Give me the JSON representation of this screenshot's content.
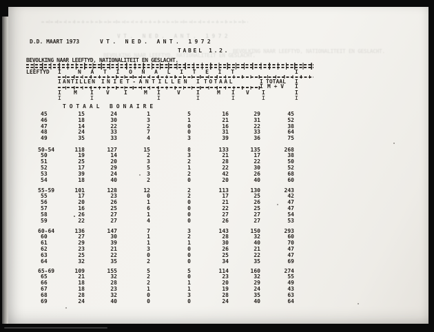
{
  "scan": {
    "stamp_left": "D.D. MAART 1973",
    "stamp_right": "VT. NED. ANT. 1972",
    "tabel": "TABEL 1.2.",
    "title": "BEVOLKING NAAR LEEFTYD, NATIONALITEIT EN GESLACHT.",
    "section_heading": "TOTAAL BONAIRE"
  },
  "table": {
    "leeftyd": "LEEFTYD",
    "nationaliteit": "NATIONALITEIT",
    "antillen": "ANTILLEN",
    "niet_antillen": "NIET-ANTILLEN",
    "totaal_group": "TOTAAL",
    "totaal_mv_line1": "TOTAAL",
    "totaal_mv_line2": "M + V",
    "m": "M",
    "v": "V",
    "bar": "I",
    "column_keys": [
      "Antillen M",
      "Antillen V",
      "Niet-Antillen M",
      "Niet-Antillen V",
      "Totaal M",
      "Totaal V",
      "Totaal M+V"
    ],
    "blocks": [
      {
        "label": null,
        "total": null,
        "rows": [
          {
            "label": "45",
            "values": [
              15,
              24,
              1,
              5,
              16,
              29,
              45
            ]
          },
          {
            "label": "46",
            "values": [
              18,
              30,
              3,
              1,
              21,
              31,
              52
            ]
          },
          {
            "label": "47",
            "values": [
              14,
              22,
              2,
              0,
              16,
              22,
              38
            ]
          },
          {
            "label": "48",
            "values": [
              24,
              33,
              7,
              0,
              31,
              33,
              64
            ]
          },
          {
            "label": "49",
            "values": [
              35,
              33,
              4,
              3,
              39,
              36,
              75
            ]
          }
        ]
      },
      {
        "label": "50-54",
        "total": [
          118,
          127,
          15,
          8,
          133,
          135,
          268
        ],
        "rows": [
          {
            "label": "50",
            "values": [
              19,
              14,
              2,
              3,
              21,
              17,
              38
            ]
          },
          {
            "label": "51",
            "values": [
              25,
              20,
              3,
              2,
              28,
              22,
              50
            ]
          },
          {
            "label": "52",
            "values": [
              17,
              29,
              5,
              1,
              22,
              30,
              52
            ]
          },
          {
            "label": "53",
            "values": [
              39,
              24,
              3,
              2,
              42,
              26,
              68
            ]
          },
          {
            "label": "54",
            "values": [
              18,
              40,
              2,
              0,
              20,
              40,
              60
            ]
          }
        ]
      },
      {
        "label": "55-59",
        "total": [
          101,
          128,
          12,
          2,
          113,
          130,
          243
        ],
        "rows": [
          {
            "label": "55",
            "values": [
              17,
              23,
              0,
              2,
              17,
              25,
              42
            ]
          },
          {
            "label": "56",
            "values": [
              20,
              26,
              1,
              0,
              21,
              26,
              47
            ]
          },
          {
            "label": "57",
            "values": [
              16,
              25,
              6,
              0,
              22,
              25,
              47
            ]
          },
          {
            "label": "58",
            "values": [
              26,
              27,
              1,
              0,
              27,
              27,
              54
            ]
          },
          {
            "label": "59",
            "values": [
              22,
              27,
              4,
              0,
              26,
              27,
              53
            ]
          }
        ]
      },
      {
        "label": "60-64",
        "total": [
          136,
          147,
          7,
          3,
          143,
          150,
          293
        ],
        "rows": [
          {
            "label": "60",
            "values": [
              27,
              30,
              1,
              2,
              28,
              32,
              60
            ]
          },
          {
            "label": "61",
            "values": [
              29,
              39,
              1,
              1,
              30,
              40,
              70
            ]
          },
          {
            "label": "62",
            "values": [
              23,
              21,
              3,
              0,
              26,
              21,
              47
            ]
          },
          {
            "label": "63",
            "values": [
              25,
              22,
              0,
              0,
              25,
              22,
              47
            ]
          },
          {
            "label": "64",
            "values": [
              32,
              35,
              2,
              0,
              34,
              35,
              69
            ]
          }
        ]
      },
      {
        "label": "65-69",
        "total": [
          109,
          155,
          5,
          5,
          114,
          160,
          274
        ],
        "rows": [
          {
            "label": "65",
            "values": [
              21,
              32,
              2,
              0,
              23,
              32,
              55
            ]
          },
          {
            "label": "66",
            "values": [
              18,
              28,
              2,
              1,
              20,
              29,
              49
            ]
          },
          {
            "label": "67",
            "values": [
              18,
              23,
              1,
              1,
              19,
              24,
              43
            ]
          },
          {
            "label": "68",
            "values": [
              28,
              32,
              0,
              3,
              28,
              35,
              63
            ]
          },
          {
            "label": "69",
            "values": [
              24,
              40,
              0,
              0,
              24,
              40,
              64
            ]
          }
        ]
      }
    ]
  }
}
